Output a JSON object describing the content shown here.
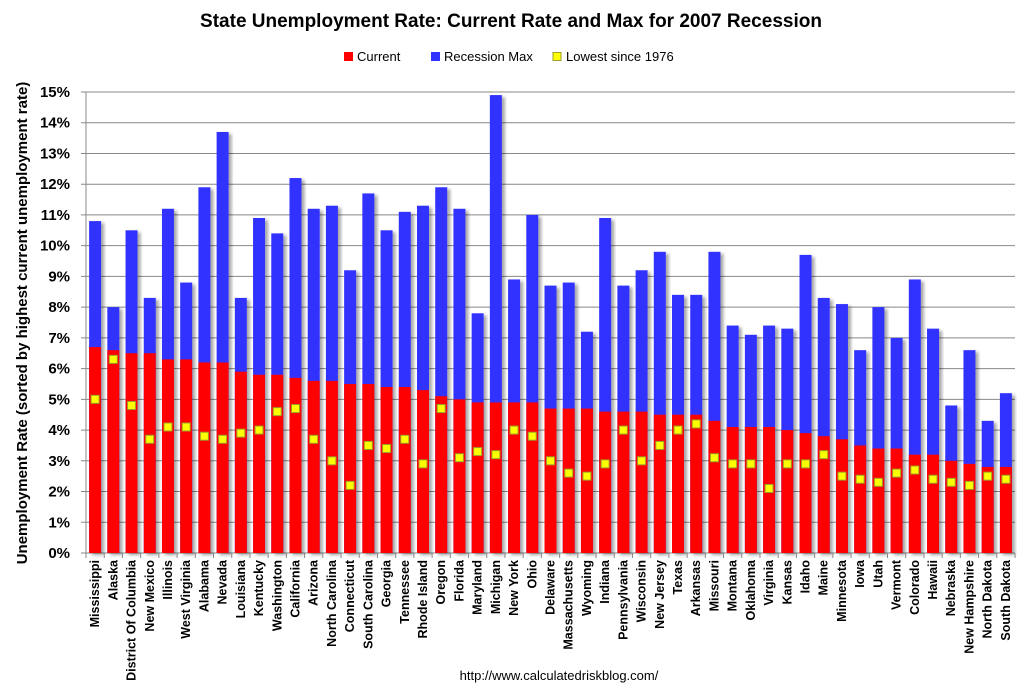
{
  "chart_data": {
    "type": "bar",
    "title": "State Unemployment Rate: Current Rate and Max for 2007 Recession",
    "xlabel": "",
    "ylabel": "Unemployment Rate (sorted by highest current unemployment rate)",
    "ylim": [
      0,
      15
    ],
    "yticks": [
      "0%",
      "1%",
      "2%",
      "3%",
      "4%",
      "5%",
      "6%",
      "7%",
      "8%",
      "9%",
      "10%",
      "11%",
      "12%",
      "13%",
      "14%",
      "15%"
    ],
    "grid": true,
    "legend_position": "top-center",
    "legend": [
      "Current",
      "Recession Max",
      "Lowest since 1976"
    ],
    "colors": {
      "current": "#ff0000",
      "recession_max": "#3333ff",
      "lowest": "#ffff00",
      "lowest_border": "#9aa02a",
      "grid": "#888888"
    },
    "categories": [
      "Mississippi",
      "Alaska",
      "District Of Columbia",
      "New Mexico",
      "Illinois",
      "West Virginia",
      "Alabama",
      "Nevada",
      "Louisiana",
      "Kentucky",
      "Washington",
      "California",
      "Arizona",
      "North Carolina",
      "Connecticut",
      "South Carolina",
      "Georgia",
      "Tennessee",
      "Rhode Island",
      "Oregon",
      "Florida",
      "Maryland",
      "Michigan",
      "New York",
      "Ohio",
      "Delaware",
      "Massachusetts",
      "Wyoming",
      "Indiana",
      "Pennsylvania",
      "Wisconsin",
      "New Jersey",
      "Texas",
      "Arkansas",
      "Missouri",
      "Montana",
      "Oklahoma",
      "Virginia",
      "Kansas",
      "Idaho",
      "Maine",
      "Minnesota",
      "Iowa",
      "Utah",
      "Vermont",
      "Colorado",
      "Hawaii",
      "Nebraska",
      "New Hampshire",
      "North Dakota",
      "South Dakota"
    ],
    "series": [
      {
        "name": "Current",
        "values": [
          6.7,
          6.6,
          6.5,
          6.5,
          6.3,
          6.3,
          6.2,
          6.2,
          5.9,
          5.8,
          5.8,
          5.7,
          5.6,
          5.6,
          5.5,
          5.5,
          5.4,
          5.4,
          5.3,
          5.1,
          5.0,
          4.9,
          4.9,
          4.9,
          4.9,
          4.7,
          4.7,
          4.7,
          4.6,
          4.6,
          4.6,
          4.5,
          4.5,
          4.5,
          4.3,
          4.1,
          4.1,
          4.1,
          4.0,
          3.9,
          3.8,
          3.7,
          3.5,
          3.4,
          3.4,
          3.2,
          3.2,
          3.0,
          2.9,
          2.8,
          2.8
        ]
      },
      {
        "name": "Recession Max",
        "values": [
          10.8,
          8.0,
          10.5,
          8.3,
          11.2,
          8.8,
          11.9,
          13.7,
          8.3,
          10.9,
          10.4,
          12.2,
          11.2,
          11.3,
          9.2,
          11.7,
          10.5,
          11.1,
          11.3,
          11.9,
          11.2,
          7.8,
          14.9,
          8.9,
          11.0,
          8.7,
          8.8,
          7.2,
          10.9,
          8.7,
          9.2,
          9.8,
          8.4,
          8.4,
          9.8,
          7.4,
          7.1,
          7.4,
          7.3,
          9.7,
          8.3,
          8.1,
          6.6,
          8.0,
          7.0,
          8.9,
          7.3,
          4.8,
          6.6,
          4.3,
          5.2
        ]
      },
      {
        "name": "Lowest since 1976",
        "values": [
          5.0,
          6.3,
          4.8,
          3.7,
          4.1,
          4.1,
          3.8,
          3.7,
          3.9,
          4.0,
          4.6,
          4.7,
          3.7,
          3.0,
          2.2,
          3.5,
          3.4,
          3.7,
          2.9,
          4.7,
          3.1,
          3.3,
          3.2,
          4.0,
          3.8,
          3.0,
          2.6,
          2.5,
          2.9,
          4.0,
          3.0,
          3.5,
          4.0,
          4.2,
          3.1,
          2.9,
          2.9,
          2.1,
          2.9,
          2.9,
          3.2,
          2.5,
          2.4,
          2.3,
          2.6,
          2.7,
          2.4,
          2.3,
          2.2,
          2.5,
          2.4
        ]
      }
    ],
    "footer": "http://www.calculatedriskblog.com/"
  }
}
